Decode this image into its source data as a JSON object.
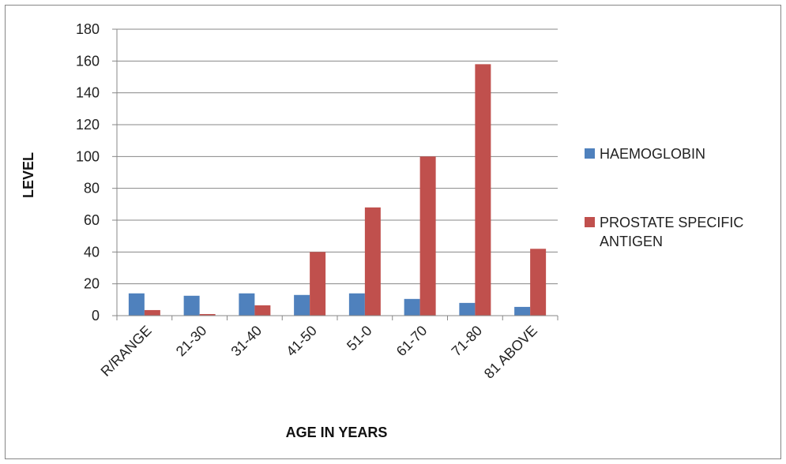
{
  "chart_data": {
    "type": "bar",
    "categories": [
      "R/RANGE",
      "21-30",
      "31-40",
      "41-50",
      "51-0",
      "61-70",
      "71-80",
      "81 ABOVE"
    ],
    "series": [
      {
        "name": "HAEMOGLOBIN",
        "color": "#4f81bd",
        "values": [
          14,
          12.5,
          14,
          13,
          14,
          10.5,
          8,
          5.5
        ]
      },
      {
        "name": "PROSTATE SPECIFIC ANTIGEN",
        "legend_lines": [
          "PROSTATE SPECIFIC",
          "ANTIGEN"
        ],
        "color": "#c0504d",
        "values": [
          3.5,
          1,
          6.5,
          40,
          68,
          100,
          158,
          42
        ]
      }
    ],
    "title": "",
    "xlabel": "AGE IN YEARS",
    "ylabel": "LEVEL",
    "ylim": [
      0,
      180
    ],
    "yticks": [
      0,
      20,
      40,
      60,
      80,
      100,
      120,
      140,
      160,
      180
    ],
    "grid": true,
    "legend_position": "right"
  }
}
